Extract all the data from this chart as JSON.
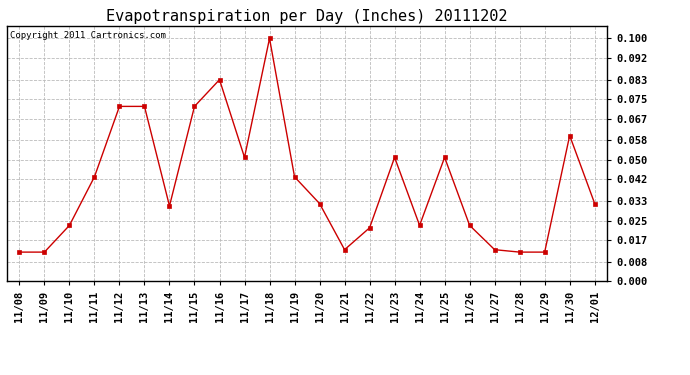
{
  "title": "Evapotranspiration per Day (Inches) 20111202",
  "copyright_text": "Copyright 2011 Cartronics.com",
  "dates": [
    "11/08",
    "11/09",
    "11/10",
    "11/11",
    "11/12",
    "11/13",
    "11/14",
    "11/15",
    "11/16",
    "11/17",
    "11/18",
    "11/19",
    "11/20",
    "11/21",
    "11/22",
    "11/23",
    "11/24",
    "11/25",
    "11/26",
    "11/27",
    "11/28",
    "11/29",
    "11/30",
    "12/01"
  ],
  "values": [
    0.012,
    0.012,
    0.023,
    0.043,
    0.072,
    0.072,
    0.031,
    0.072,
    0.083,
    0.051,
    0.1,
    0.043,
    0.032,
    0.013,
    0.022,
    0.051,
    0.023,
    0.051,
    0.023,
    0.013,
    0.012,
    0.012,
    0.06,
    0.032
  ],
  "line_color": "#cc0000",
  "marker": "s",
  "marker_size": 3,
  "ylim": [
    0.0,
    0.105
  ],
  "yticks": [
    0.0,
    0.008,
    0.017,
    0.025,
    0.033,
    0.042,
    0.05,
    0.058,
    0.067,
    0.075,
    0.083,
    0.092,
    0.1
  ],
  "background_color": "#ffffff",
  "grid_color": "#bbbbbb",
  "title_fontsize": 11,
  "copyright_fontsize": 6.5,
  "tick_fontsize": 7.5
}
